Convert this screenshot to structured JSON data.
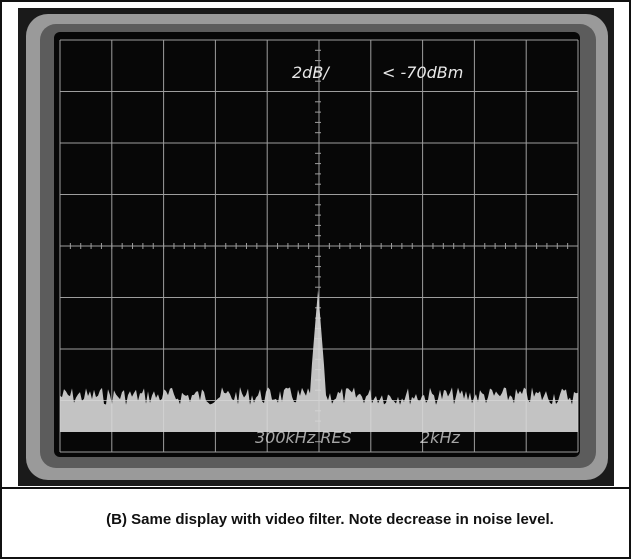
{
  "screen": {
    "readout_scale": "2dB/",
    "readout_reference": "< -70dBm",
    "readout_resolution": "300kHz RES",
    "readout_span": "2kHz"
  },
  "caption": "(B) Same display with video filter. Note decrease in noise level."
}
